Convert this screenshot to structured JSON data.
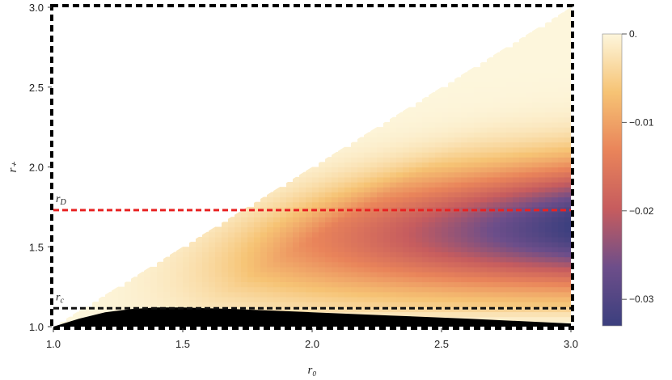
{
  "chart_data": {
    "type": "heatmap",
    "title": "",
    "xlabel": "r₀",
    "ylabel": "r₊",
    "xlim": [
      1.0,
      3.0
    ],
    "ylim": [
      1.0,
      3.0
    ],
    "x_ticks": [
      1.0,
      1.5,
      2.0,
      2.5,
      3.0
    ],
    "x_tick_labels": [
      "1.0",
      "1.5",
      "2.0",
      "2.5",
      "3.0"
    ],
    "y_ticks": [
      1.0,
      1.5,
      2.0,
      2.5,
      3.0
    ],
    "y_tick_labels": [
      "1.0",
      "1.5",
      "2.0",
      "2.5",
      "3.0"
    ],
    "colorbar": {
      "range": [
        -0.033,
        0.0
      ],
      "ticks": [
        0.0,
        -0.01,
        -0.02,
        -0.03
      ],
      "tick_labels": [
        "0.",
        "−0.01",
        "−0.02",
        "−0.03"
      ],
      "colors": [
        "#3b3f7e",
        "#6d4e8a",
        "#c65c5e",
        "#e9845a",
        "#f6c374",
        "#fdf6dc"
      ]
    },
    "field": {
      "region": "r+ < r0",
      "min_value": -0.033,
      "min_location": [
        3.0,
        1.63
      ],
      "description_values": [
        {
          "x": 3.0,
          "y": 1.63,
          "value": -0.033
        },
        {
          "x": 2.5,
          "y": 1.6,
          "value": -0.024
        },
        {
          "x": 2.0,
          "y": 1.55,
          "value": -0.016
        },
        {
          "x": 1.5,
          "y": 1.35,
          "value": -0.008
        },
        {
          "x": 3.0,
          "y": 2.9,
          "value": 0.0
        },
        {
          "x": 3.0,
          "y": 1.05,
          "value": 0.0
        }
      ]
    },
    "excluded_region": {
      "color": "#000000",
      "boundary": [
        [
          1.0,
          1.0
        ],
        [
          1.1,
          1.05
        ],
        [
          1.2,
          1.09
        ],
        [
          1.3,
          1.11
        ],
        [
          1.4,
          1.12
        ],
        [
          1.5,
          1.12
        ],
        [
          1.7,
          1.11
        ],
        [
          2.0,
          1.09
        ],
        [
          2.3,
          1.07
        ],
        [
          2.6,
          1.05
        ],
        [
          3.0,
          1.02
        ]
      ]
    },
    "lines": [
      {
        "label": "r_D",
        "label_main": "r",
        "label_sub": "D",
        "y": 1.73,
        "color": "#e82222",
        "style": "dashed"
      },
      {
        "label": "r_c",
        "label_main": "r",
        "label_sub": "c",
        "y": 1.115,
        "color": "#111111",
        "style": "dashed"
      }
    ],
    "frame": {
      "style": "dashed",
      "color": "#000000"
    },
    "grid": false
  }
}
